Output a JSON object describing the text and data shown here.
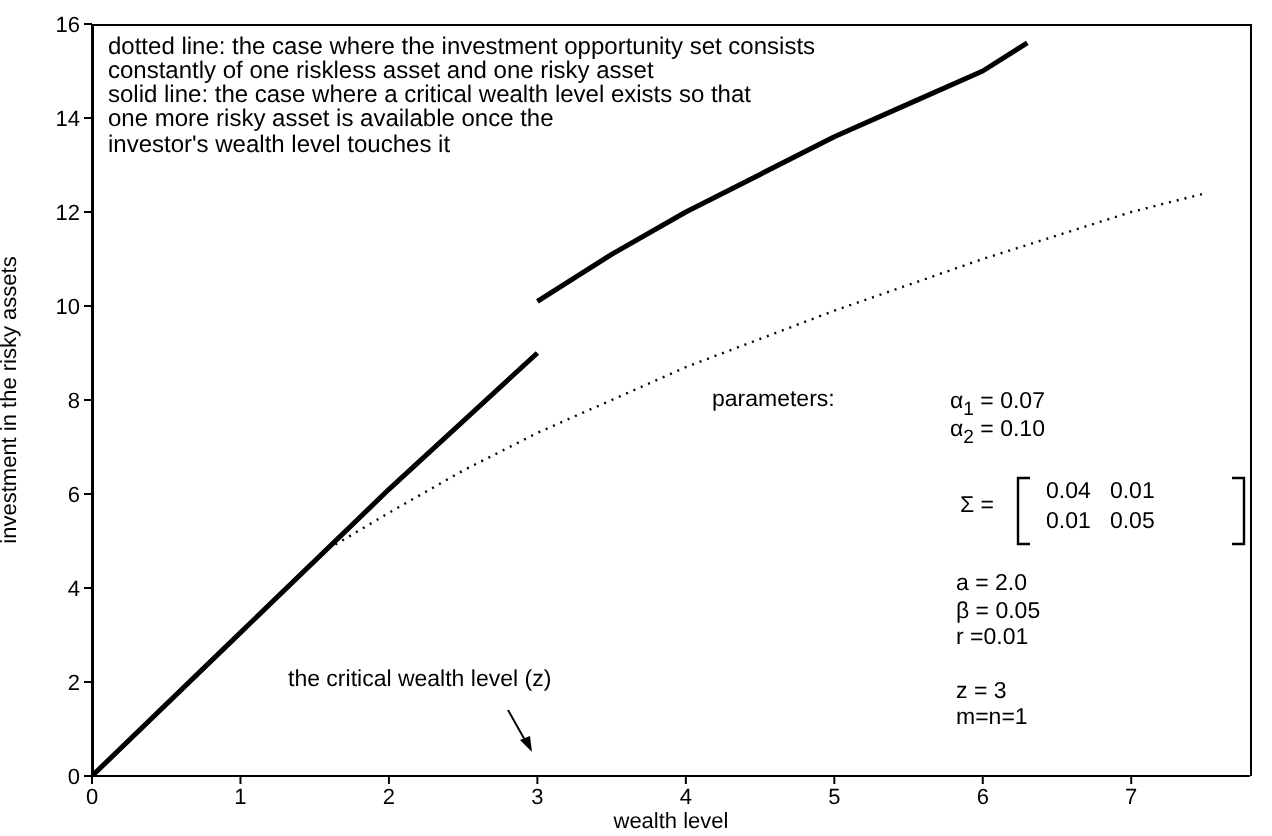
{
  "chart_data": {
    "type": "line",
    "xlabel": "wealth level",
    "ylabel": "investment in the risky assets",
    "xlim": [
      0,
      7.8
    ],
    "xticks": [
      0,
      1,
      2,
      3,
      4,
      5,
      6,
      7
    ],
    "ylim": [
      0,
      16
    ],
    "yticks": [
      0,
      2,
      4,
      6,
      8,
      10,
      12,
      14,
      16
    ],
    "series": [
      {
        "color": "#000000",
        "line_style": "solid",
        "x": [
          0,
          1,
          2,
          3
        ],
        "values": [
          0,
          3.05,
          6.1,
          9.0
        ]
      },
      {
        "color": "#000000",
        "line_style": "solid",
        "x": [
          3,
          3.5,
          4,
          4.5,
          5,
          5.5,
          6,
          6.3
        ],
        "values": [
          10.1,
          11.1,
          12.0,
          12.8,
          13.6,
          14.3,
          15.0,
          15.6
        ]
      },
      {
        "color": "#000000",
        "line_style": "dotted",
        "x": [
          0,
          1,
          1.6,
          2,
          2.5,
          3,
          4,
          5,
          6,
          7,
          7.5
        ],
        "values": [
          0,
          3.05,
          4.85,
          5.6,
          6.5,
          7.3,
          8.7,
          9.9,
          11.0,
          12.0,
          12.4
        ]
      }
    ],
    "annotations": [
      "dotted line: the case where the investment opportunity set consists",
      "constantly of one riskless asset and one risky asset",
      "solid line: the case where a critical wealth level exists so that",
      "one more risky asset is available once the",
      "investor's wealth level touches it",
      "parameters:",
      "α$_{1}$ = 0.07",
      "α$_{2}$ = 0.10",
      "Σ =",
      "0.04   0.01",
      "0.01   0.05",
      "a = 2.0",
      "β = 0.05",
      "r =0.01",
      "z = 3",
      "m=n=1",
      "the critical wealth level (z)"
    ]
  }
}
